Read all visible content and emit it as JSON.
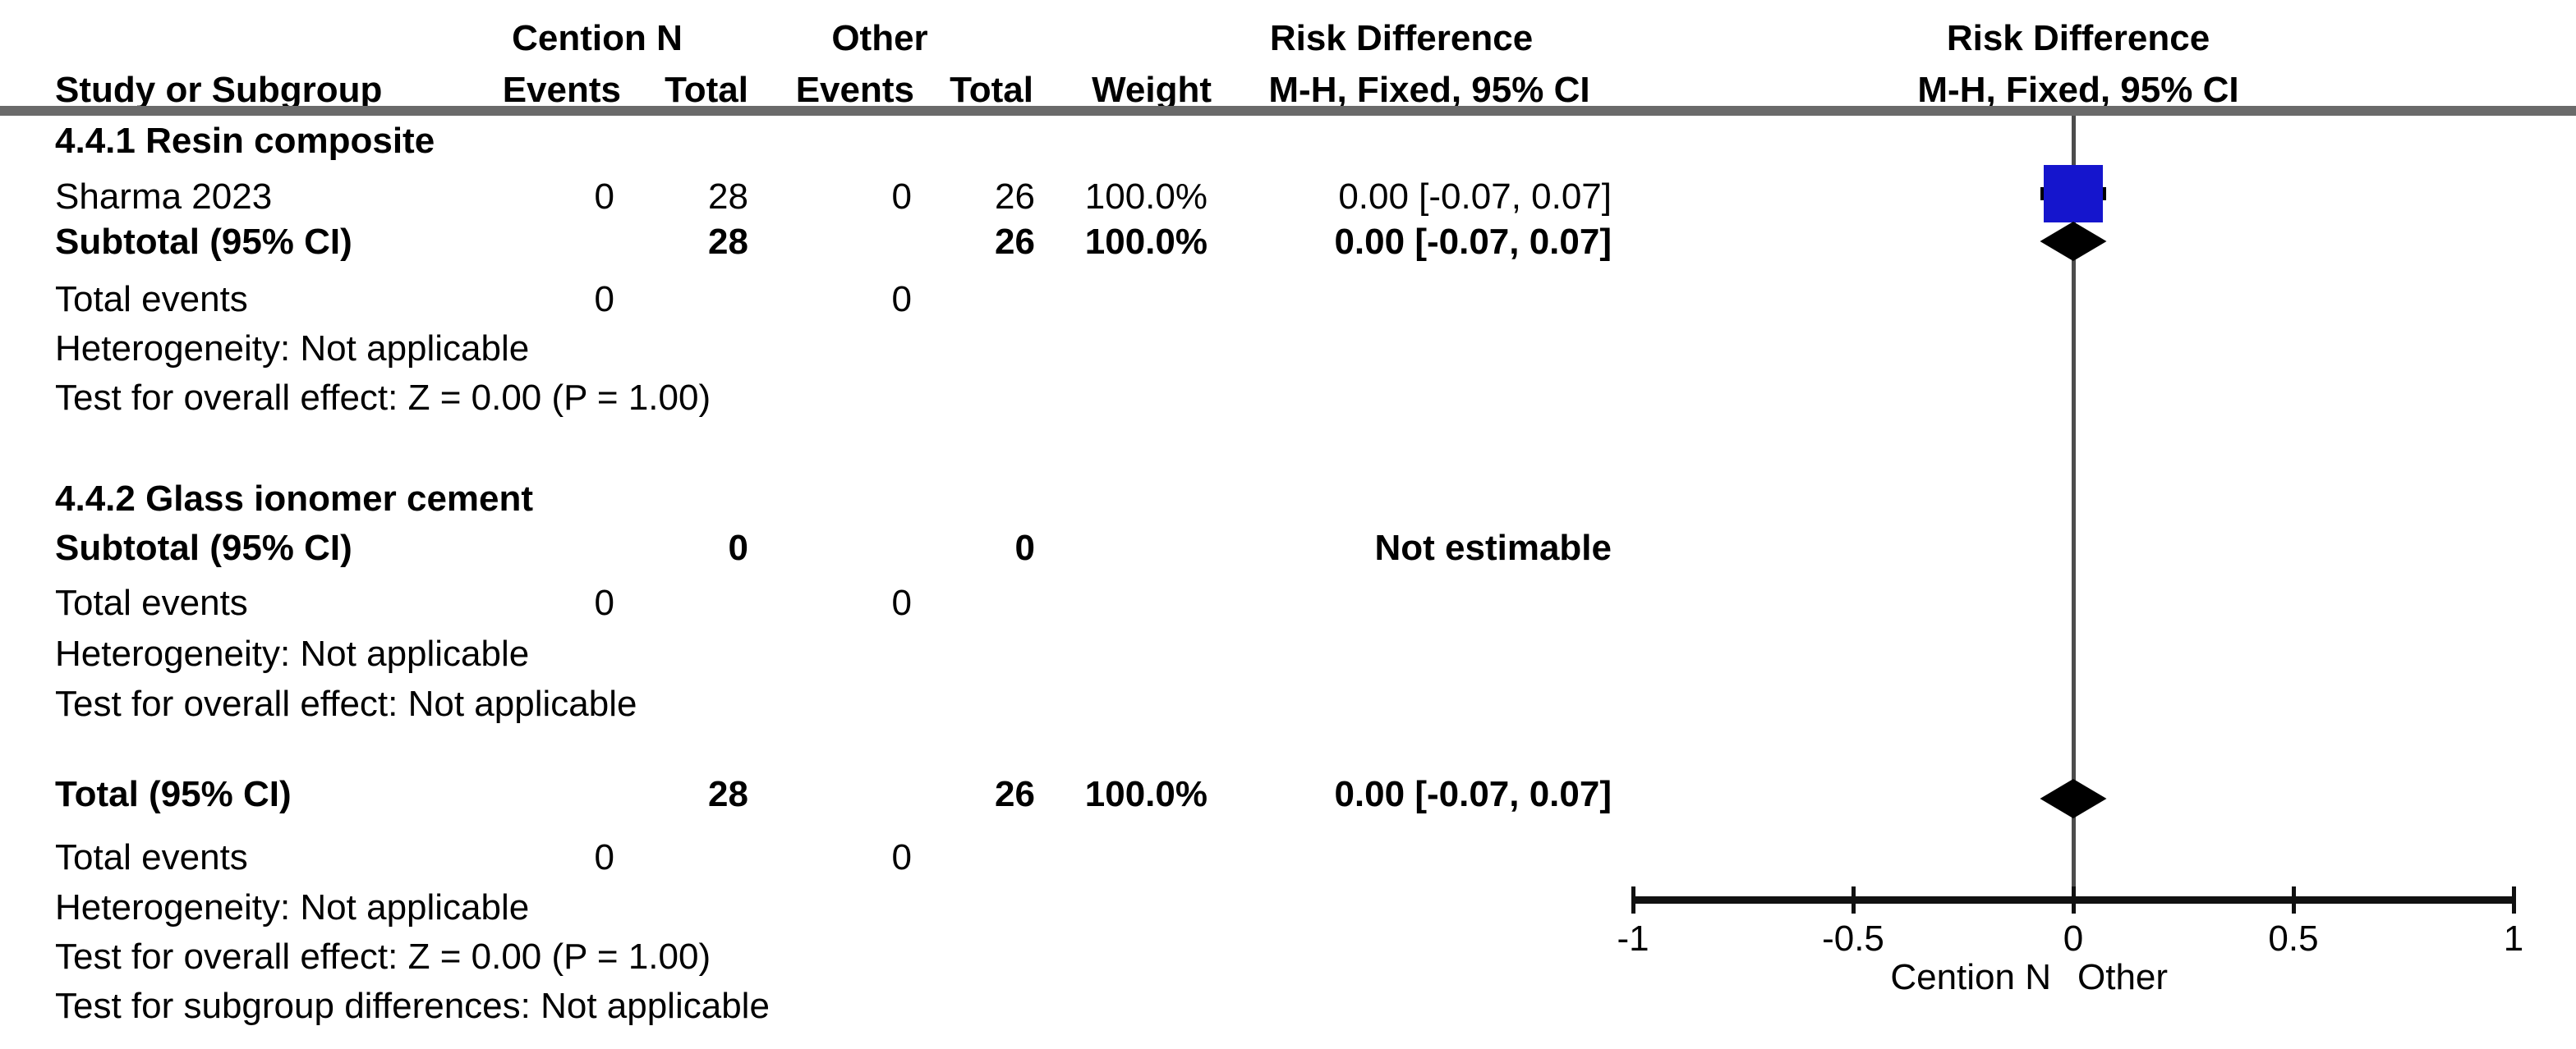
{
  "figure_title": "Forest plot: Risk Difference, Cention N vs Other",
  "header": {
    "group1_label": "Cention N",
    "group2_label": "Other",
    "study_col": "Study or Subgroup",
    "events_col": "Events",
    "total_col": "Total",
    "weight_col": "Weight",
    "effect_col_line1": "Risk Difference",
    "effect_col_line2": "M-H, Fixed, 95% CI",
    "plot_col_line1": "Risk Difference",
    "plot_col_line2": "M-H, Fixed, 95% CI"
  },
  "table": {
    "rows": [
      {
        "type": "section",
        "label": "4.4.1 Resin composite",
        "events1": "",
        "total1": "",
        "events2": "",
        "total2": "",
        "weight": "",
        "ci": ""
      },
      {
        "type": "study",
        "label": "Sharma 2023",
        "events1": "0",
        "total1": "28",
        "events2": "0",
        "total2": "26",
        "weight": "100.0%",
        "ci": "0.00 [-0.07, 0.07]"
      },
      {
        "type": "subtotal",
        "label": "Subtotal (95% CI)",
        "events1": "",
        "total1": "28",
        "events2": "",
        "total2": "26",
        "weight": "100.0%",
        "ci": "0.00 [-0.07, 0.07]"
      },
      {
        "type": "stat",
        "label": "Total events",
        "events1": "0",
        "total1": "",
        "events2": "0",
        "total2": "",
        "weight": "",
        "ci": ""
      },
      {
        "type": "stat",
        "label": "Heterogeneity: Not applicable",
        "events1": "",
        "total1": "",
        "events2": "",
        "total2": "",
        "weight": "",
        "ci": ""
      },
      {
        "type": "stat",
        "label": "Test for overall effect: Z = 0.00 (P = 1.00)",
        "events1": "",
        "total1": "",
        "events2": "",
        "total2": "",
        "weight": "",
        "ci": ""
      },
      {
        "type": "section",
        "label": "4.4.2 Glass ionomer cement",
        "events1": "",
        "total1": "",
        "events2": "",
        "total2": "",
        "weight": "",
        "ci": ""
      },
      {
        "type": "subtotal",
        "label": "Subtotal (95% CI)",
        "events1": "",
        "total1": "0",
        "events2": "",
        "total2": "0",
        "weight": "",
        "ci": "Not estimable"
      },
      {
        "type": "stat",
        "label": "Total events",
        "events1": "0",
        "total1": "",
        "events2": "0",
        "total2": "",
        "weight": "",
        "ci": ""
      },
      {
        "type": "stat",
        "label": "Heterogeneity: Not applicable",
        "events1": "",
        "total1": "",
        "events2": "",
        "total2": "",
        "weight": "",
        "ci": ""
      },
      {
        "type": "stat",
        "label": "Test for overall effect: Not applicable",
        "events1": "",
        "total1": "",
        "events2": "",
        "total2": "",
        "weight": "",
        "ci": ""
      },
      {
        "type": "total",
        "label": "Total (95% CI)",
        "events1": "",
        "total1": "28",
        "events2": "",
        "total2": "26",
        "weight": "100.0%",
        "ci": "0.00 [-0.07, 0.07]"
      },
      {
        "type": "stat",
        "label": "Total events",
        "events1": "0",
        "total1": "",
        "events2": "0",
        "total2": "",
        "weight": "",
        "ci": ""
      },
      {
        "type": "stat",
        "label": "Heterogeneity: Not applicable",
        "events1": "",
        "total1": "",
        "events2": "",
        "total2": "",
        "weight": "",
        "ci": ""
      },
      {
        "type": "stat",
        "label": "Test for overall effect: Z = 0.00 (P = 1.00)",
        "events1": "",
        "total1": "",
        "events2": "",
        "total2": "",
        "weight": "",
        "ci": ""
      },
      {
        "type": "stat",
        "label": "Test for subgroup differences: Not applicable",
        "events1": "",
        "total1": "",
        "events2": "",
        "total2": "",
        "weight": "",
        "ci": ""
      }
    ]
  },
  "chart_data": {
    "type": "forest",
    "effect_measure": "Risk Difference",
    "method": "M-H, Fixed, 95% CI",
    "axis": {
      "min": -1,
      "max": 1,
      "ticks": [
        -1,
        -0.5,
        0,
        0.5,
        1
      ],
      "tick_labels": [
        "-1",
        "-0.5",
        "0",
        "0.5",
        "1"
      ],
      "left_label": "Cention N",
      "right_label": "Other",
      "zero_line": 0
    },
    "points": [
      {
        "label": "Sharma 2023",
        "estimate": 0.0,
        "ci_low": -0.07,
        "ci_high": 0.07,
        "weight_pct": 100.0,
        "marker": "square"
      },
      {
        "label": "Subtotal (95% CI)",
        "estimate": 0.0,
        "ci_low": -0.07,
        "ci_high": 0.07,
        "marker": "diamond"
      },
      {
        "label": "Total (95% CI)",
        "estimate": 0.0,
        "ci_low": -0.07,
        "ci_high": 0.07,
        "marker": "diamond"
      }
    ],
    "not_estimable_subgroups": [
      "4.4.2 Glass ionomer cement"
    ]
  },
  "colors": {
    "square_blue": "#1515cd",
    "diamond_black": "#000000",
    "zero_line_gray": "#4c4c4c",
    "separator_gray": "#6a6a6a",
    "axis_black": "#111111"
  }
}
